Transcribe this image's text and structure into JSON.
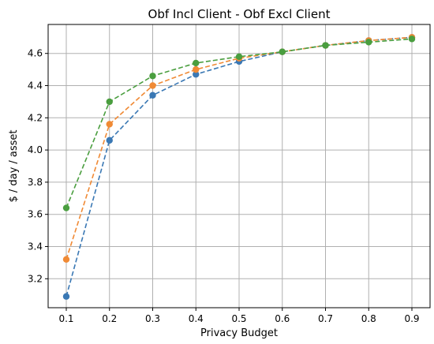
{
  "chart_data": {
    "type": "line",
    "title": "Obf Incl Client - Obf Excl Client",
    "xlabel": "Privacy Budget",
    "ylabel": "$ / day / asset",
    "x": [
      0.1,
      0.2,
      0.3,
      0.4,
      0.5,
      0.6,
      0.7,
      0.8,
      0.9
    ],
    "xticks": [
      "0.1",
      "0.2",
      "0.3",
      "0.4",
      "0.5",
      "0.6",
      "0.7",
      "0.8",
      "0.9"
    ],
    "yticks": [
      "3.2",
      "3.4",
      "3.6",
      "3.8",
      "4.0",
      "4.2",
      "4.4",
      "4.6"
    ],
    "xlim": [
      0.058,
      0.942
    ],
    "ylim": [
      3.02,
      4.78
    ],
    "grid": true,
    "line_style": "dashed",
    "series": [
      {
        "color": "#3a78b4",
        "values": [
          3.09,
          4.06,
          4.34,
          4.47,
          4.55,
          4.61,
          4.65,
          4.68,
          4.7
        ]
      },
      {
        "color": "#f08a35",
        "values": [
          3.32,
          4.16,
          4.4,
          4.5,
          4.57,
          4.61,
          4.65,
          4.68,
          4.7
        ]
      },
      {
        "color": "#4a9e3f",
        "values": [
          3.64,
          4.3,
          4.46,
          4.54,
          4.58,
          4.61,
          4.65,
          4.67,
          4.69
        ]
      }
    ]
  }
}
